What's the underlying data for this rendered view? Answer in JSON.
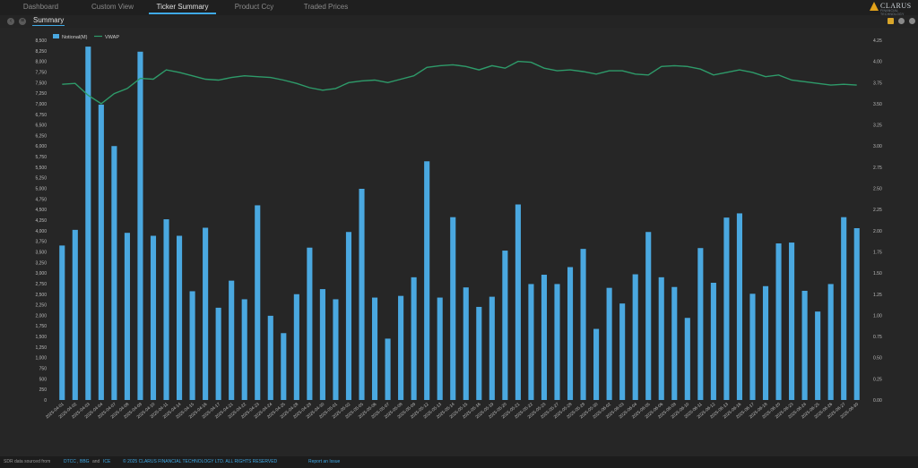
{
  "nav": {
    "tabs": [
      "Dashboard",
      "Custom View",
      "Ticker Summary",
      "Product Ccy",
      "Traded Prices"
    ],
    "active_tab": "Ticker Summary"
  },
  "logo": {
    "text": "CLARUS",
    "sub": "FINANCIAL TECHNOLOGY"
  },
  "subbar": {
    "tab": "Summary"
  },
  "footer": {
    "prefix": "SDR data sourced from",
    "link1": "DTCC",
    "sep": ",",
    "link2": "BBG",
    "and": "and",
    "link3": "ICE",
    "copyright": "© 2025 CLARUS FINANCIAL TECHNOLOGY LTD. ALL RIGHTS RESERVED",
    "report": "Report an Issue"
  },
  "colors": {
    "bar": "#4aa8e0",
    "line": "#2e9b6a",
    "active_tab": "#3fa9e6",
    "background": "#262626"
  },
  "chart_data": {
    "type": "bar",
    "series": [
      {
        "name": "Notional(M)",
        "type": "bar",
        "axis": "left",
        "values": [
          3650,
          4020,
          8350,
          6980,
          6000,
          3950,
          8230,
          3880,
          4270,
          3880,
          2570,
          4070,
          2180,
          2820,
          2380,
          4600,
          1990,
          1580,
          2500,
          3600,
          2620,
          2380,
          3970,
          4990,
          2420,
          1450,
          2460,
          2900,
          5640,
          2420,
          4320,
          2660,
          2200,
          2440,
          3530,
          4620,
          2740,
          2960,
          2740,
          3140,
          3570,
          1680,
          2650,
          2280,
          2970,
          3970,
          2900,
          2670,
          1940,
          3590,
          2770,
          4310,
          4410,
          2510,
          2690,
          3700,
          3720,
          2580,
          2090,
          2740,
          4320,
          4060
        ]
      },
      {
        "name": "VWAP",
        "type": "line",
        "axis": "right",
        "values": [
          3.73,
          3.74,
          3.6,
          3.5,
          3.62,
          3.68,
          3.8,
          3.79,
          3.9,
          3.87,
          3.83,
          3.79,
          3.78,
          3.81,
          3.83,
          3.82,
          3.81,
          3.78,
          3.74,
          3.69,
          3.66,
          3.68,
          3.75,
          3.77,
          3.78,
          3.75,
          3.79,
          3.83,
          3.93,
          3.95,
          3.96,
          3.94,
          3.9,
          3.95,
          3.92,
          4.0,
          3.99,
          3.92,
          3.89,
          3.9,
          3.88,
          3.85,
          3.89,
          3.89,
          3.85,
          3.84,
          3.94,
          3.95,
          3.94,
          3.91,
          3.84,
          3.87,
          3.9,
          3.87,
          3.82,
          3.84,
          3.78,
          3.76,
          3.74,
          3.72,
          3.73,
          3.72
        ]
      }
    ],
    "categories": [
      "2025-04-01",
      "2025-04-02",
      "2025-04-03",
      "2025-04-04",
      "2025-04-07",
      "2025-04-08",
      "2025-04-09",
      "2025-04-10",
      "2025-04-11",
      "2025-04-14",
      "2025-04-15",
      "2025-04-16",
      "2025-04-17",
      "2025-04-21",
      "2025-04-22",
      "2025-04-23",
      "2025-04-24",
      "2025-04-25",
      "2025-04-28",
      "2025-04-29",
      "2025-04-30",
      "2025-05-01",
      "2025-05-02",
      "2025-05-05",
      "2025-05-06",
      "2025-05-07",
      "2025-05-08",
      "2025-05-09",
      "2025-05-12",
      "2025-05-13",
      "2025-05-14",
      "2025-05-15",
      "2025-05-16",
      "2025-05-19",
      "2025-05-20",
      "2025-05-21",
      "2025-05-22",
      "2025-05-23",
      "2025-05-27",
      "2025-05-28",
      "2025-05-29",
      "2025-05-30",
      "2025-06-02",
      "2025-06-03",
      "2025-06-04",
      "2025-06-05",
      "2025-06-06",
      "2025-06-09",
      "2025-06-10",
      "2025-06-11",
      "2025-06-12",
      "2025-06-13",
      "2025-06-16",
      "2025-06-17",
      "2025-06-18",
      "2025-06-20",
      "2025-06-23",
      "2025-06-24",
      "2025-06-25",
      "2025-06-26",
      "2025-06-27",
      "2025-06-30"
    ],
    "y_left": {
      "min": 0,
      "max": 8500,
      "step": 250,
      "ticks": [
        "0",
        "250",
        "500",
        "750",
        "1,000",
        "1,250",
        "1,500",
        "1,750",
        "2,000",
        "2,250",
        "2,500",
        "2,750",
        "3,000",
        "3,250",
        "3,500",
        "3,750",
        "4,000",
        "4,250",
        "4,500",
        "4,750",
        "5,000",
        "5,250",
        "5,500",
        "5,750",
        "6,000",
        "6,250",
        "6,500",
        "6,750",
        "7,000",
        "7,250",
        "7,500",
        "7,750",
        "8,000",
        "8,250",
        "8,500"
      ]
    },
    "y_right": {
      "min": 0,
      "max": 4.25,
      "step": 0.25,
      "ticks": [
        "0.00",
        "0.25",
        "0.50",
        "0.75",
        "1.00",
        "1.25",
        "1.50",
        "1.75",
        "2.00",
        "2.25",
        "2.50",
        "2.75",
        "3.00",
        "3.25",
        "3.50",
        "3.75",
        "4.00",
        "4.25"
      ]
    },
    "legend": {
      "position": "top-left",
      "items": [
        "Notional(M)",
        "VWAP"
      ]
    },
    "grid": false
  }
}
